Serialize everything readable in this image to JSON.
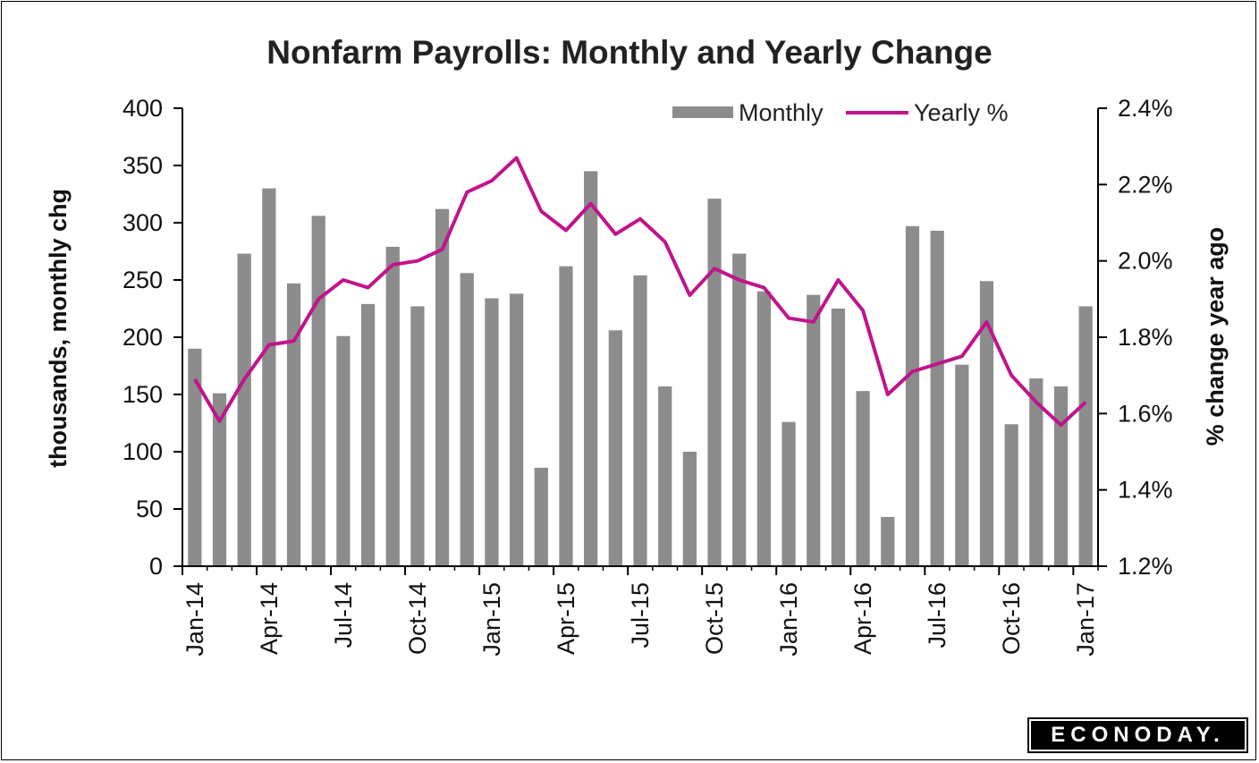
{
  "chart_data": {
    "type": "bar",
    "title": "Nonfarm Payrolls: Monthly and Yearly Change",
    "ylabel_left": "thousands, monthly chg",
    "ylabel_right": "% change year ago",
    "ylim_left": [
      0,
      400
    ],
    "ylim_right": [
      1.2,
      2.4
    ],
    "yticks_left": [
      "0",
      "50",
      "100",
      "150",
      "200",
      "250",
      "300",
      "350",
      "400"
    ],
    "yticks_right": [
      "1.2%",
      "1.4%",
      "1.6%",
      "1.8%",
      "2.0%",
      "2.2%",
      "2.4%"
    ],
    "x_tick_labels": [
      "Jan-14",
      "Apr-14",
      "Jul-14",
      "Oct-14",
      "Jan-15",
      "Apr-15",
      "Jul-15",
      "Oct-15",
      "Jan-16",
      "Apr-16",
      "Jul-16",
      "Oct-16",
      "Jan-17"
    ],
    "legend_position": "top-right",
    "grid": false,
    "categories": [
      "Jan-14",
      "Feb-14",
      "Mar-14",
      "Apr-14",
      "May-14",
      "Jun-14",
      "Jul-14",
      "Aug-14",
      "Sep-14",
      "Oct-14",
      "Nov-14",
      "Dec-14",
      "Jan-15",
      "Feb-15",
      "Mar-15",
      "Apr-15",
      "May-15",
      "Jun-15",
      "Jul-15",
      "Aug-15",
      "Sep-15",
      "Oct-15",
      "Nov-15",
      "Dec-15",
      "Jan-16",
      "Feb-16",
      "Mar-16",
      "Apr-16",
      "May-16",
      "Jun-16",
      "Jul-16",
      "Aug-16",
      "Sep-16",
      "Oct-16",
      "Nov-16",
      "Dec-16",
      "Jan-17"
    ],
    "series": [
      {
        "name": "Monthly",
        "type": "bar",
        "axis": "left",
        "color": "#8c8c8c",
        "values": [
          190,
          151,
          273,
          330,
          247,
          306,
          201,
          229,
          279,
          227,
          312,
          256,
          234,
          238,
          86,
          262,
          345,
          206,
          254,
          157,
          100,
          321,
          273,
          240,
          126,
          237,
          225,
          153,
          43,
          297,
          293,
          176,
          249,
          124,
          164,
          157,
          227
        ]
      },
      {
        "name": "Yearly %",
        "type": "line",
        "axis": "right",
        "color": "#c0148c",
        "values": [
          1.69,
          1.58,
          1.69,
          1.78,
          1.79,
          1.9,
          1.95,
          1.93,
          1.99,
          2.0,
          2.03,
          2.18,
          2.21,
          2.27,
          2.13,
          2.08,
          2.15,
          2.07,
          2.11,
          2.05,
          1.91,
          1.98,
          1.95,
          1.93,
          1.85,
          1.84,
          1.95,
          1.87,
          1.65,
          1.71,
          1.73,
          1.75,
          1.84,
          1.7,
          1.63,
          1.57,
          1.63
        ]
      }
    ]
  },
  "logo": {
    "text": "ECONODAY."
  }
}
